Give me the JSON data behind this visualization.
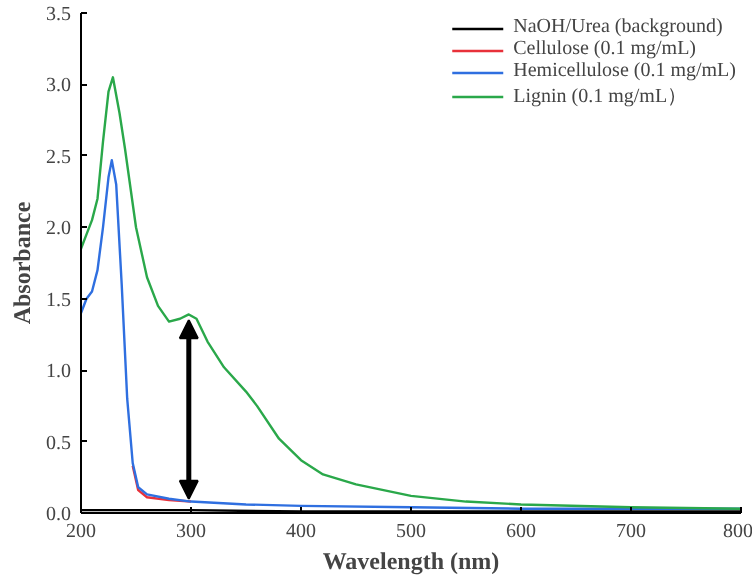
{
  "chart_data": {
    "type": "line",
    "xlabel": "Wavelength (nm)",
    "ylabel": "Absorbance",
    "xlim": [
      200,
      800
    ],
    "ylim": [
      0,
      3.5
    ],
    "xticks": [
      200,
      300,
      400,
      500,
      600,
      700,
      800
    ],
    "yticks": [
      {
        "value": 0,
        "label": "0.0"
      },
      {
        "value": 0.5,
        "label": "0.5"
      },
      {
        "value": 1,
        "label": "1.0"
      },
      {
        "value": 1.5,
        "label": "1.5"
      },
      {
        "value": 2,
        "label": "2.0"
      },
      {
        "value": 2.5,
        "label": "2.5"
      },
      {
        "value": 3,
        "label": "3.0"
      },
      {
        "value": 3.5,
        "label": "3.5"
      }
    ],
    "grid": false,
    "legend": "top right",
    "series": [
      {
        "name": "NaOH/Urea (background)",
        "color": "#000000",
        "x": [
          200,
          300,
          400,
          500,
          600,
          700,
          800
        ],
        "values": [
          0.02,
          0.02,
          0.01,
          0.01,
          0.01,
          0.01,
          0.01
        ]
      },
      {
        "name": "Cellulose (0.1 mg/mL)",
        "color": "#e8313a",
        "x": [
          247,
          252,
          260,
          280,
          300
        ],
        "values": [
          0.33,
          0.16,
          0.11,
          0.09,
          0.08
        ]
      },
      {
        "name": "Hemicellulose (0.1 mg/mL)",
        "color": "#2f6fe0",
        "x": [
          200,
          205,
          210,
          215,
          220,
          225,
          228,
          232,
          237,
          242,
          247,
          252,
          260,
          280,
          300,
          350,
          400,
          500,
          600,
          800
        ],
        "values": [
          1.4,
          1.5,
          1.55,
          1.7,
          2.0,
          2.35,
          2.47,
          2.3,
          1.6,
          0.8,
          0.35,
          0.18,
          0.13,
          0.1,
          0.08,
          0.06,
          0.05,
          0.04,
          0.03,
          0.03
        ]
      },
      {
        "name": "Lignin (0.1 mg/mL）",
        "color": "#2aa84a",
        "x": [
          200,
          205,
          210,
          215,
          220,
          225,
          229,
          235,
          240,
          250,
          260,
          270,
          280,
          290,
          298,
          305,
          315,
          330,
          350,
          360,
          380,
          400,
          420,
          450,
          500,
          550,
          600,
          700,
          800
        ],
        "values": [
          1.85,
          1.95,
          2.05,
          2.2,
          2.6,
          2.95,
          3.05,
          2.8,
          2.55,
          2.0,
          1.65,
          1.45,
          1.34,
          1.36,
          1.39,
          1.36,
          1.2,
          1.02,
          0.85,
          0.75,
          0.52,
          0.37,
          0.27,
          0.2,
          0.12,
          0.08,
          0.06,
          0.04,
          0.03
        ]
      }
    ]
  }
}
